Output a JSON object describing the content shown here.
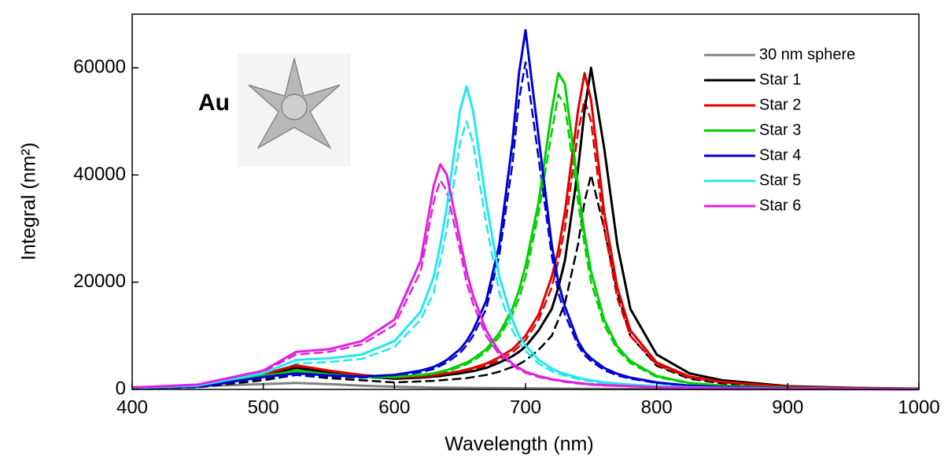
{
  "chart_data": {
    "type": "line",
    "xlabel": "Wavelength (nm)",
    "ylabel": "Integral (nm²)",
    "annotation": "Au",
    "xlim": [
      400,
      1000
    ],
    "xticks": [
      400,
      500,
      600,
      700,
      800,
      900,
      1000
    ],
    "ylim": [
      0,
      70000
    ],
    "yticks": [
      0,
      20000,
      40000,
      60000
    ],
    "legend": "upper right",
    "x": [
      400,
      450,
      500,
      525,
      550,
      575,
      600,
      620,
      630,
      635,
      640,
      650,
      655,
      660,
      670,
      680,
      690,
      695,
      700,
      710,
      720,
      725,
      730,
      740,
      745,
      750,
      760,
      770,
      780,
      800,
      825,
      850,
      900,
      950,
      1000
    ],
    "series": [
      {
        "name": "30 nm sphere",
        "color": "#808080",
        "dash": "solid",
        "values": [
          400,
          600,
          1000,
          1200,
          1000,
          700,
          500,
          400,
          350,
          330,
          320,
          300,
          290,
          280,
          260,
          240,
          220,
          210,
          200,
          180,
          160,
          150,
          140,
          130,
          120,
          110,
          100,
          90,
          80,
          70,
          60,
          50,
          40,
          30,
          20
        ]
      },
      {
        "color": "#000000",
        "dash": "dashed",
        "values": [
          200,
          400,
          1700,
          2700,
          2100,
          1700,
          1300,
          1500,
          1600,
          1700,
          1800,
          2000,
          2100,
          2300,
          2700,
          3300,
          4200,
          4700,
          5400,
          7400,
          10000,
          13000,
          16000,
          27000,
          35000,
          40000,
          30000,
          18000,
          10000,
          4400,
          2000,
          1100,
          400,
          200,
          100
        ]
      },
      {
        "color": "#e00000",
        "dash": "dashed",
        "values": [
          280,
          550,
          2600,
          4100,
          3200,
          2500,
          2000,
          2200,
          2400,
          2600,
          2800,
          3100,
          3400,
          3700,
          4400,
          5500,
          6900,
          8000,
          9200,
          13000,
          19000,
          24000,
          30000,
          48000,
          54000,
          50000,
          30000,
          17000,
          10000,
          4600,
          2200,
          1300,
          460,
          230,
          110
        ]
      },
      {
        "color": "#00d000",
        "dash": "dashed",
        "values": [
          230,
          470,
          2300,
          3300,
          2600,
          2200,
          2100,
          2500,
          2800,
          3100,
          3300,
          4200,
          4700,
          5300,
          7000,
          9800,
          14000,
          17000,
          21000,
          33000,
          48000,
          55000,
          53000,
          35000,
          27000,
          20000,
          12000,
          7400,
          4900,
          2300,
          1100,
          650,
          280,
          140,
          75
        ]
      },
      {
        "color": "#0000d0",
        "dash": "dashed",
        "values": [
          230,
          460,
          2100,
          2700,
          2400,
          2200,
          2500,
          3200,
          3800,
          4400,
          5000,
          6800,
          8200,
          10000,
          15000,
          25000,
          42000,
          54000,
          61000,
          43000,
          25000,
          18000,
          14000,
          8200,
          6400,
          5300,
          3600,
          2600,
          2000,
          1200,
          640,
          410,
          180,
          90,
          45
        ]
      },
      {
        "color": "#20e8f0",
        "dash": "dashed",
        "values": [
          260,
          620,
          2600,
          4800,
          5100,
          5700,
          7900,
          13000,
          18000,
          24000,
          30000,
          46000,
          50000,
          46000,
          31000,
          18000,
          11000,
          8800,
          7200,
          4800,
          3400,
          2900,
          2600,
          1900,
          1700,
          1500,
          1100,
          970,
          790,
          530,
          350,
          260,
          130,
          70,
          35
        ]
      },
      {
        "color": "#e020e0",
        "dash": "dashed",
        "values": [
          330,
          840,
          3300,
          6500,
          7000,
          8400,
          12000,
          22000,
          35000,
          39000,
          37000,
          26000,
          20000,
          16000,
          10000,
          6500,
          4500,
          3700,
          3100,
          2300,
          1800,
          1600,
          1400,
          1100,
          980,
          880,
          740,
          650,
          560,
          370,
          280,
          200,
          110,
          56,
          28
        ]
      },
      {
        "name": "Star 1",
        "color": "#000000",
        "dash": "solid",
        "values": [
          300,
          600,
          2500,
          4000,
          3200,
          2500,
          2000,
          2200,
          2400,
          2500,
          2700,
          3000,
          3200,
          3400,
          4000,
          5000,
          6200,
          7000,
          8000,
          11000,
          15000,
          19000,
          24000,
          41000,
          52000,
          60000,
          45000,
          27000,
          15000,
          6500,
          3000,
          1700,
          600,
          300,
          150
        ]
      },
      {
        "name": "Star 2",
        "color": "#e00000",
        "dash": "solid",
        "values": [
          300,
          600,
          2800,
          4500,
          3500,
          2700,
          2200,
          2400,
          2600,
          2800,
          3000,
          3400,
          3700,
          4000,
          4800,
          6000,
          7500,
          8700,
          10000,
          14000,
          21000,
          26000,
          33000,
          52000,
          59000,
          54000,
          33000,
          19000,
          11000,
          5000,
          2400,
          1400,
          500,
          250,
          120
        ]
      },
      {
        "name": "Star 3",
        "color": "#00d000",
        "dash": "solid",
        "values": [
          250,
          500,
          2500,
          3500,
          2800,
          2400,
          2300,
          2700,
          3000,
          3300,
          3600,
          4500,
          5000,
          5700,
          7500,
          10500,
          15000,
          18500,
          23000,
          35000,
          52000,
          59000,
          57000,
          38000,
          29000,
          22000,
          13000,
          8000,
          5300,
          2500,
          1200,
          700,
          300,
          150,
          80
        ]
      },
      {
        "name": "Star 4",
        "color": "#0000d0",
        "dash": "solid",
        "values": [
          250,
          500,
          2300,
          3000,
          2600,
          2400,
          2700,
          3500,
          4200,
          4800,
          5500,
          7500,
          9000,
          11000,
          16500,
          27000,
          46000,
          59000,
          67000,
          47000,
          27000,
          20000,
          15500,
          9000,
          7000,
          5800,
          4000,
          2900,
          2200,
          1300,
          700,
          450,
          200,
          100,
          50
        ]
      },
      {
        "name": "Star 5",
        "color": "#20e8f0",
        "dash": "solid",
        "values": [
          300,
          700,
          3000,
          5500,
          5800,
          6500,
          9000,
          14500,
          21000,
          27000,
          34000,
          52000,
          56500,
          52000,
          35000,
          21000,
          13000,
          10000,
          8200,
          5500,
          3900,
          3300,
          2900,
          2200,
          1900,
          1700,
          1300,
          1100,
          900,
          600,
          400,
          300,
          150,
          80,
          40
        ]
      },
      {
        "name": "Star 6",
        "color": "#e020e0",
        "dash": "solid",
        "values": [
          350,
          900,
          3500,
          7000,
          7500,
          9000,
          13000,
          24000,
          38000,
          42000,
          40000,
          28000,
          22000,
          17500,
          11000,
          7000,
          4800,
          4000,
          3300,
          2500,
          1900,
          1700,
          1500,
          1200,
          1050,
          950,
          800,
          700,
          600,
          400,
          300,
          220,
          120,
          60,
          30
        ]
      }
    ]
  }
}
